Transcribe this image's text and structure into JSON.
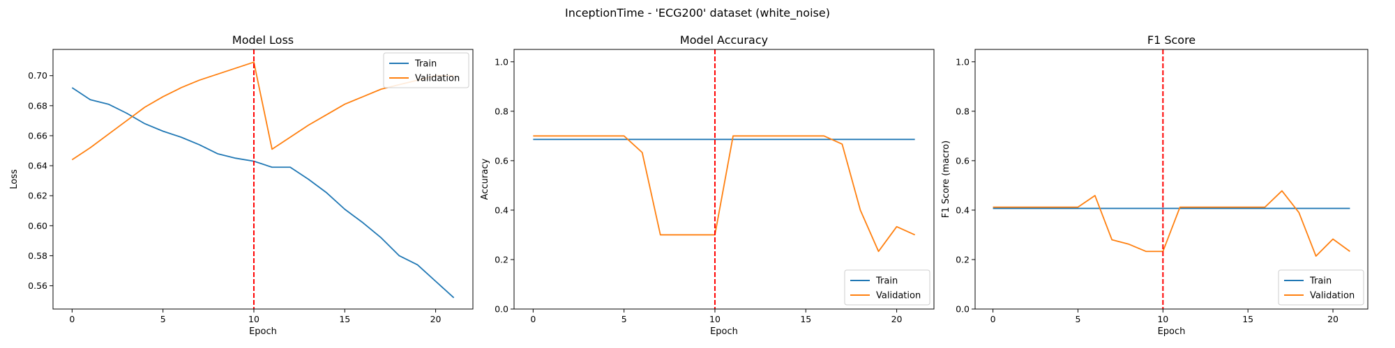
{
  "figure": {
    "suptitle": "InceptionTime - 'ECG200' dataset (white_noise)"
  },
  "colors": {
    "train": "#1f77b4",
    "validation": "#ff7f0e",
    "marker_line": "#ff0000"
  },
  "chart_data": [
    {
      "type": "line",
      "title": "Model Loss",
      "xlabel": "Epoch",
      "ylabel": "Loss",
      "x": [
        0,
        1,
        2,
        3,
        4,
        5,
        6,
        7,
        8,
        9,
        10,
        11,
        12,
        13,
        14,
        15,
        16,
        17,
        18,
        19,
        20,
        21
      ],
      "xlim": [
        -1.05,
        22.05
      ],
      "ylim": [
        0.5445,
        0.7175
      ],
      "xticks": [
        0,
        5,
        10,
        15,
        20
      ],
      "yticks": [
        0.56,
        0.58,
        0.6,
        0.62,
        0.64,
        0.66,
        0.68,
        0.7
      ],
      "ytick_labels": [
        "0.56",
        "0.58",
        "0.60",
        "0.62",
        "0.64",
        "0.66",
        "0.68",
        "0.70"
      ],
      "vline_x": 10,
      "legend": "top-right",
      "grid": false,
      "series": [
        {
          "name": "Train",
          "color": "#1f77b4",
          "values": [
            0.692,
            0.684,
            0.681,
            0.675,
            0.668,
            0.663,
            0.659,
            0.654,
            0.648,
            0.645,
            0.643,
            0.639,
            0.639,
            0.631,
            0.622,
            0.611,
            0.602,
            0.592,
            0.58,
            0.574,
            0.563,
            0.552
          ]
        },
        {
          "name": "Validation",
          "color": "#ff7f0e",
          "values": [
            0.644,
            0.652,
            0.661,
            0.67,
            0.679,
            0.686,
            0.692,
            0.697,
            0.701,
            0.705,
            0.709,
            0.651,
            0.659,
            0.667,
            0.674,
            0.681,
            0.686,
            0.691,
            0.694,
            0.697,
            0.7,
            0.7
          ]
        }
      ]
    },
    {
      "type": "line",
      "title": "Model Accuracy",
      "xlabel": "Epoch",
      "ylabel": "Accuracy",
      "x": [
        0,
        1,
        2,
        3,
        4,
        5,
        6,
        7,
        8,
        9,
        10,
        11,
        12,
        13,
        14,
        15,
        16,
        17,
        18,
        19,
        20,
        21
      ],
      "xlim": [
        -1.05,
        22.05
      ],
      "ylim": [
        0,
        1.05
      ],
      "xticks": [
        0,
        5,
        10,
        15,
        20
      ],
      "yticks": [
        0.0,
        0.2,
        0.4,
        0.6,
        0.8,
        1.0
      ],
      "ytick_labels": [
        "0.0",
        "0.2",
        "0.4",
        "0.6",
        "0.8",
        "1.0"
      ],
      "vline_x": 10,
      "legend": "bottom-right",
      "grid": false,
      "series": [
        {
          "name": "Train",
          "color": "#1f77b4",
          "values": [
            0.686,
            0.686,
            0.686,
            0.686,
            0.686,
            0.686,
            0.686,
            0.686,
            0.686,
            0.686,
            0.686,
            0.686,
            0.686,
            0.686,
            0.686,
            0.686,
            0.686,
            0.686,
            0.686,
            0.686,
            0.686,
            0.686
          ]
        },
        {
          "name": "Validation",
          "color": "#ff7f0e",
          "values": [
            0.7,
            0.7,
            0.7,
            0.7,
            0.7,
            0.7,
            0.633,
            0.3,
            0.3,
            0.3,
            0.3,
            0.7,
            0.7,
            0.7,
            0.7,
            0.7,
            0.7,
            0.667,
            0.4,
            0.233,
            0.333,
            0.3
          ]
        }
      ]
    },
    {
      "type": "line",
      "title": "F1 Score",
      "xlabel": "Epoch",
      "ylabel": "F1 Score (macro)",
      "x": [
        0,
        1,
        2,
        3,
        4,
        5,
        6,
        7,
        8,
        9,
        10,
        11,
        12,
        13,
        14,
        15,
        16,
        17,
        18,
        19,
        20,
        21
      ],
      "xlim": [
        -1.05,
        22.05
      ],
      "ylim": [
        0,
        1.05
      ],
      "xticks": [
        0,
        5,
        10,
        15,
        20
      ],
      "yticks": [
        0.0,
        0.2,
        0.4,
        0.6,
        0.8,
        1.0
      ],
      "ytick_labels": [
        "0.0",
        "0.2",
        "0.4",
        "0.6",
        "0.8",
        "1.0"
      ],
      "vline_x": 10,
      "legend": "bottom-right",
      "grid": false,
      "series": [
        {
          "name": "Train",
          "color": "#1f77b4",
          "values": [
            0.407,
            0.407,
            0.407,
            0.407,
            0.407,
            0.407,
            0.407,
            0.407,
            0.407,
            0.407,
            0.407,
            0.407,
            0.407,
            0.407,
            0.407,
            0.407,
            0.407,
            0.407,
            0.407,
            0.407,
            0.407,
            0.407
          ]
        },
        {
          "name": "Validation",
          "color": "#ff7f0e",
          "values": [
            0.412,
            0.412,
            0.412,
            0.412,
            0.412,
            0.412,
            0.459,
            0.28,
            0.262,
            0.233,
            0.233,
            0.412,
            0.412,
            0.412,
            0.412,
            0.412,
            0.412,
            0.478,
            0.39,
            0.214,
            0.283,
            0.233
          ]
        }
      ]
    }
  ]
}
